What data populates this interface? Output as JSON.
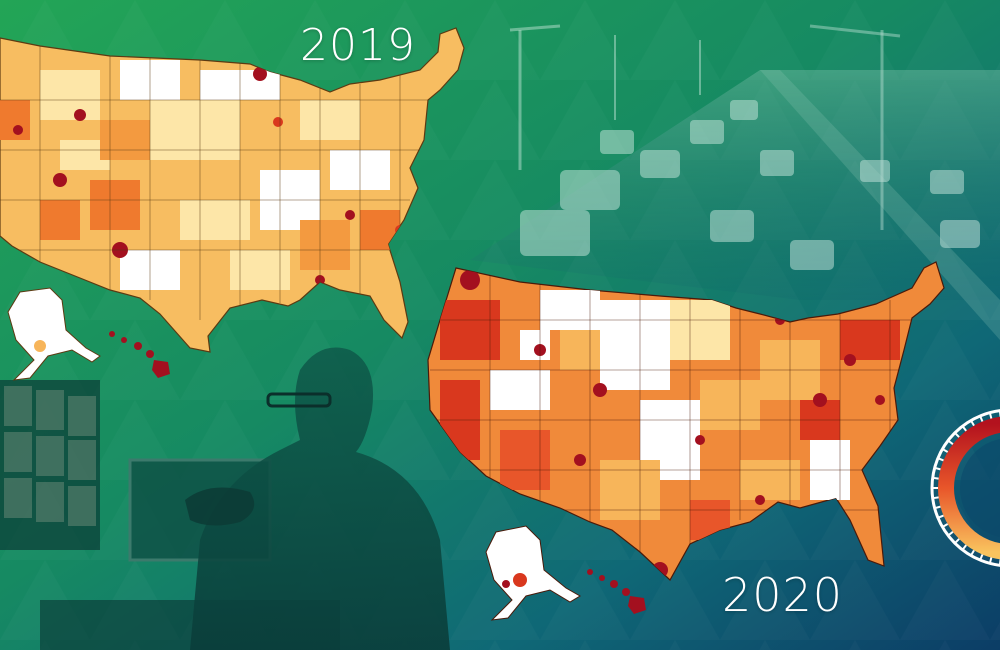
{
  "maps": [
    {
      "year_label": "2019"
    },
    {
      "year_label": "2020"
    }
  ],
  "colors": {
    "bg_green": "#1e9a55",
    "bg_teal": "#11707a",
    "bg_navy": "#0d3f66",
    "county_light": "#fde6a8",
    "county_mid": "#f7b55a",
    "county_orange": "#ef7a2e",
    "county_red": "#d9381e",
    "county_dark": "#a3101f",
    "no_data": "#ffffff"
  },
  "gauge": {
    "level_fraction": 0.6
  }
}
